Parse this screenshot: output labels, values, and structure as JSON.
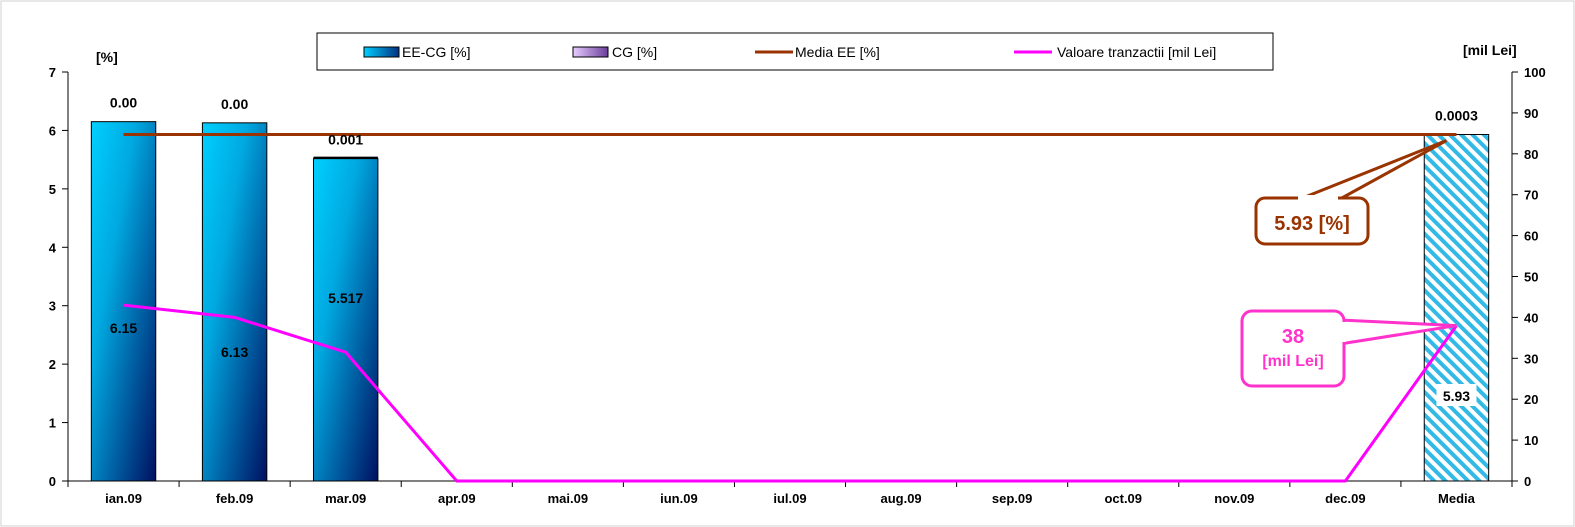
{
  "chart_data": {
    "type": "bar",
    "categories": [
      "ian.09",
      "feb.09",
      "mar.09",
      "apr.09",
      "mai.09",
      "iun.09",
      "iul.09",
      "aug.09",
      "sep.09",
      "oct.09",
      "nov.09",
      "dec.09",
      "Media"
    ],
    "y_left_label": "[%]",
    "y_right_label": "[mil Lei]",
    "ylim_left": [
      0,
      7
    ],
    "ylim_right": [
      0,
      100
    ],
    "yticks_left": [
      "0",
      "1",
      "2",
      "3",
      "4",
      "5",
      "6",
      "7"
    ],
    "yticks_right": [
      "0",
      "10",
      "20",
      "30",
      "40",
      "50",
      "60",
      "70",
      "80",
      "90",
      "100"
    ],
    "series": [
      {
        "name": "EE-CG [%]",
        "kind": "bar",
        "axis": "left",
        "values": [
          6.15,
          6.13,
          5.517,
          null,
          null,
          null,
          null,
          null,
          null,
          null,
          null,
          null,
          5.93
        ],
        "labels": [
          "6.15",
          "6.13",
          "5.517",
          "",
          "",
          "",
          "",
          "",
          "",
          "",
          "",
          "",
          "5.93"
        ],
        "color": "#00bfff"
      },
      {
        "name": "CG [%]",
        "kind": "bar",
        "axis": "left",
        "values": [
          0.0,
          0.0,
          0.001,
          null,
          null,
          null,
          null,
          null,
          null,
          null,
          null,
          null,
          0.0003
        ],
        "labels": [
          "0.00",
          "0.00",
          "0.001",
          "",
          "",
          "",
          "",
          "",
          "",
          "",
          "",
          "",
          "0.0003"
        ],
        "color": "#cc99ff"
      },
      {
        "name": "Media EE [%]",
        "kind": "line",
        "axis": "left",
        "values": [
          5.93,
          5.93,
          5.93,
          5.93,
          5.93,
          5.93,
          5.93,
          5.93,
          5.93,
          5.93,
          5.93,
          5.93,
          5.93
        ],
        "color": "#993300"
      },
      {
        "name": "Valoare tranzactii [mil Lei]",
        "kind": "line",
        "axis": "right",
        "values": [
          43,
          40,
          31.5,
          0,
          0,
          0,
          0,
          0,
          0,
          0,
          0,
          0,
          38
        ],
        "color": "#ff00ff"
      }
    ],
    "annotations": [
      {
        "text": "5.93 [%]",
        "color": "#993300"
      },
      {
        "text_top": "38",
        "text_bottom": "[mil Lei]",
        "color": "#ff33cc"
      }
    ],
    "legend_position": "top-center",
    "grid": false
  }
}
